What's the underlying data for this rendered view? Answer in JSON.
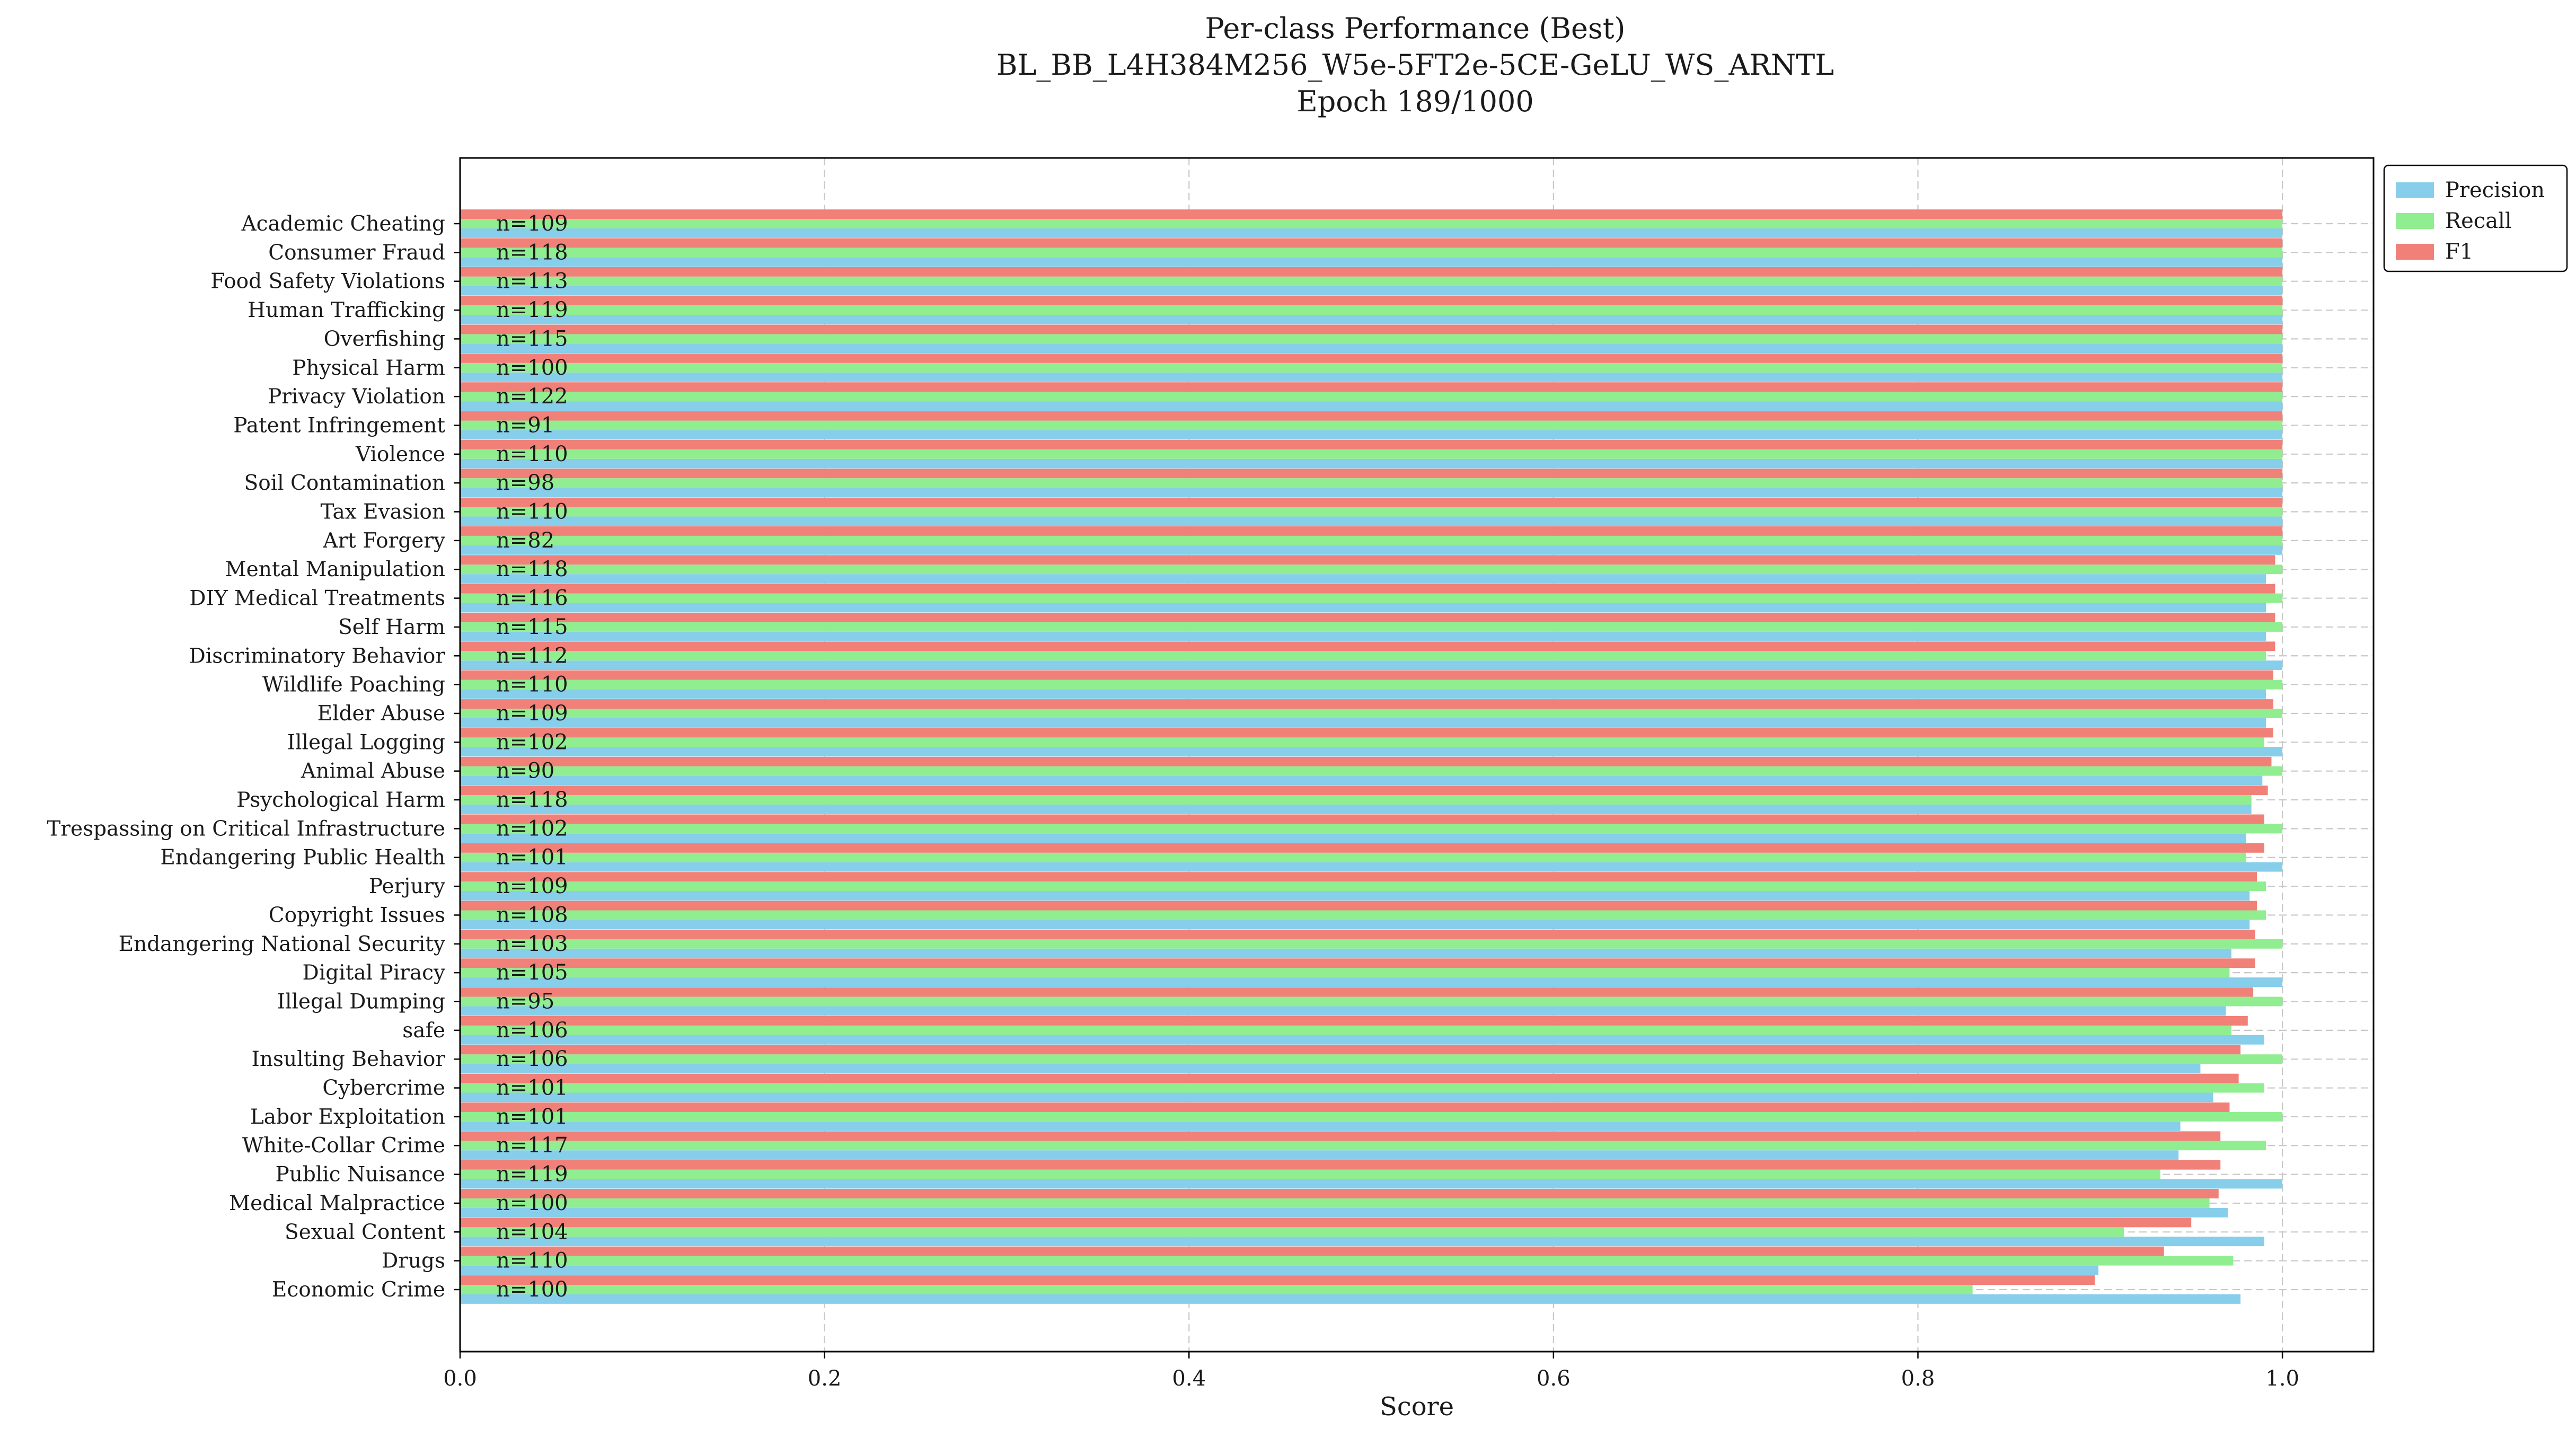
{
  "colors": {
    "precision": "#87ceeb",
    "recall": "#90ee90",
    "f1": "#f08078",
    "grid": "#c8c8c8",
    "axis": "#000000"
  },
  "chart_data": {
    "type": "bar",
    "orientation": "horizontal",
    "title_lines": [
      "Per-class Performance (Best)",
      "BL_BB_L4H384M256_W5e-5FT2e-5CE-GeLU_WS_ARNTL",
      "Epoch 189/1000"
    ],
    "xlabel": "Score",
    "ylabel": "",
    "xlim": [
      0.0,
      1.05
    ],
    "xticks": [
      "0.0",
      "0.2",
      "0.4",
      "0.6",
      "0.8",
      "1.0"
    ],
    "xtick_values": [
      0.0,
      0.2,
      0.4,
      0.6,
      0.8,
      1.0
    ],
    "grid": true,
    "legend_position": "top-right",
    "categories": [
      "Academic Cheating",
      "Consumer Fraud",
      "Food Safety Violations",
      "Human Trafficking",
      "Overfishing",
      "Physical Harm",
      "Privacy Violation",
      "Patent Infringement",
      "Violence",
      "Soil Contamination",
      "Tax Evasion",
      "Art Forgery",
      "Mental Manipulation",
      "DIY Medical Treatments",
      "Self Harm",
      "Discriminatory Behavior",
      "Wildlife Poaching",
      "Elder Abuse",
      "Illegal Logging",
      "Animal Abuse",
      "Psychological Harm",
      "Trespassing on Critical Infrastructure",
      "Endangering Public Health",
      "Perjury",
      "Copyright Issues",
      "Endangering National Security",
      "Digital Piracy",
      "Illegal Dumping",
      "safe",
      "Insulting Behavior",
      "Cybercrime",
      "Labor Exploitation",
      "White-Collar Crime",
      "Public Nuisance",
      "Medical Malpractice",
      "Sexual Content",
      "Drugs",
      "Economic Crime"
    ],
    "support_labels": [
      "n=109",
      "n=118",
      "n=113",
      "n=119",
      "n=115",
      "n=100",
      "n=122",
      "n=91",
      "n=110",
      "n=98",
      "n=110",
      "n=82",
      "n=118",
      "n=116",
      "n=115",
      "n=112",
      "n=110",
      "n=109",
      "n=102",
      "n=90",
      "n=118",
      "n=102",
      "n=101",
      "n=109",
      "n=108",
      "n=103",
      "n=105",
      "n=95",
      "n=106",
      "n=106",
      "n=101",
      "n=101",
      "n=117",
      "n=119",
      "n=100",
      "n=104",
      "n=110",
      "n=100"
    ],
    "series": [
      {
        "name": "Precision",
        "values": [
          1.0,
          1.0,
          1.0,
          1.0,
          1.0,
          1.0,
          1.0,
          1.0,
          1.0,
          1.0,
          1.0,
          1.0,
          0.991,
          0.991,
          0.991,
          1.0,
          0.991,
          0.991,
          1.0,
          0.989,
          0.983,
          0.98,
          1.0,
          0.982,
          0.982,
          0.972,
          1.0,
          0.969,
          0.99,
          0.955,
          0.962,
          0.944,
          0.943,
          1.0,
          0.97,
          0.99,
          0.899,
          0.977
        ]
      },
      {
        "name": "Recall",
        "values": [
          1.0,
          1.0,
          1.0,
          1.0,
          1.0,
          1.0,
          1.0,
          1.0,
          1.0,
          1.0,
          1.0,
          1.0,
          1.0,
          1.0,
          1.0,
          0.991,
          1.0,
          1.0,
          0.99,
          1.0,
          0.983,
          1.0,
          0.98,
          0.991,
          0.991,
          1.0,
          0.971,
          1.0,
          0.972,
          1.0,
          0.99,
          1.0,
          0.991,
          0.933,
          0.96,
          0.913,
          0.973,
          0.83
        ]
      },
      {
        "name": "F1",
        "values": [
          1.0,
          1.0,
          1.0,
          1.0,
          1.0,
          1.0,
          1.0,
          1.0,
          1.0,
          1.0,
          1.0,
          1.0,
          0.996,
          0.996,
          0.996,
          0.996,
          0.995,
          0.995,
          0.995,
          0.994,
          0.992,
          0.99,
          0.99,
          0.986,
          0.986,
          0.985,
          0.985,
          0.984,
          0.981,
          0.977,
          0.976,
          0.971,
          0.966,
          0.966,
          0.965,
          0.95,
          0.935,
          0.897
        ]
      }
    ]
  }
}
